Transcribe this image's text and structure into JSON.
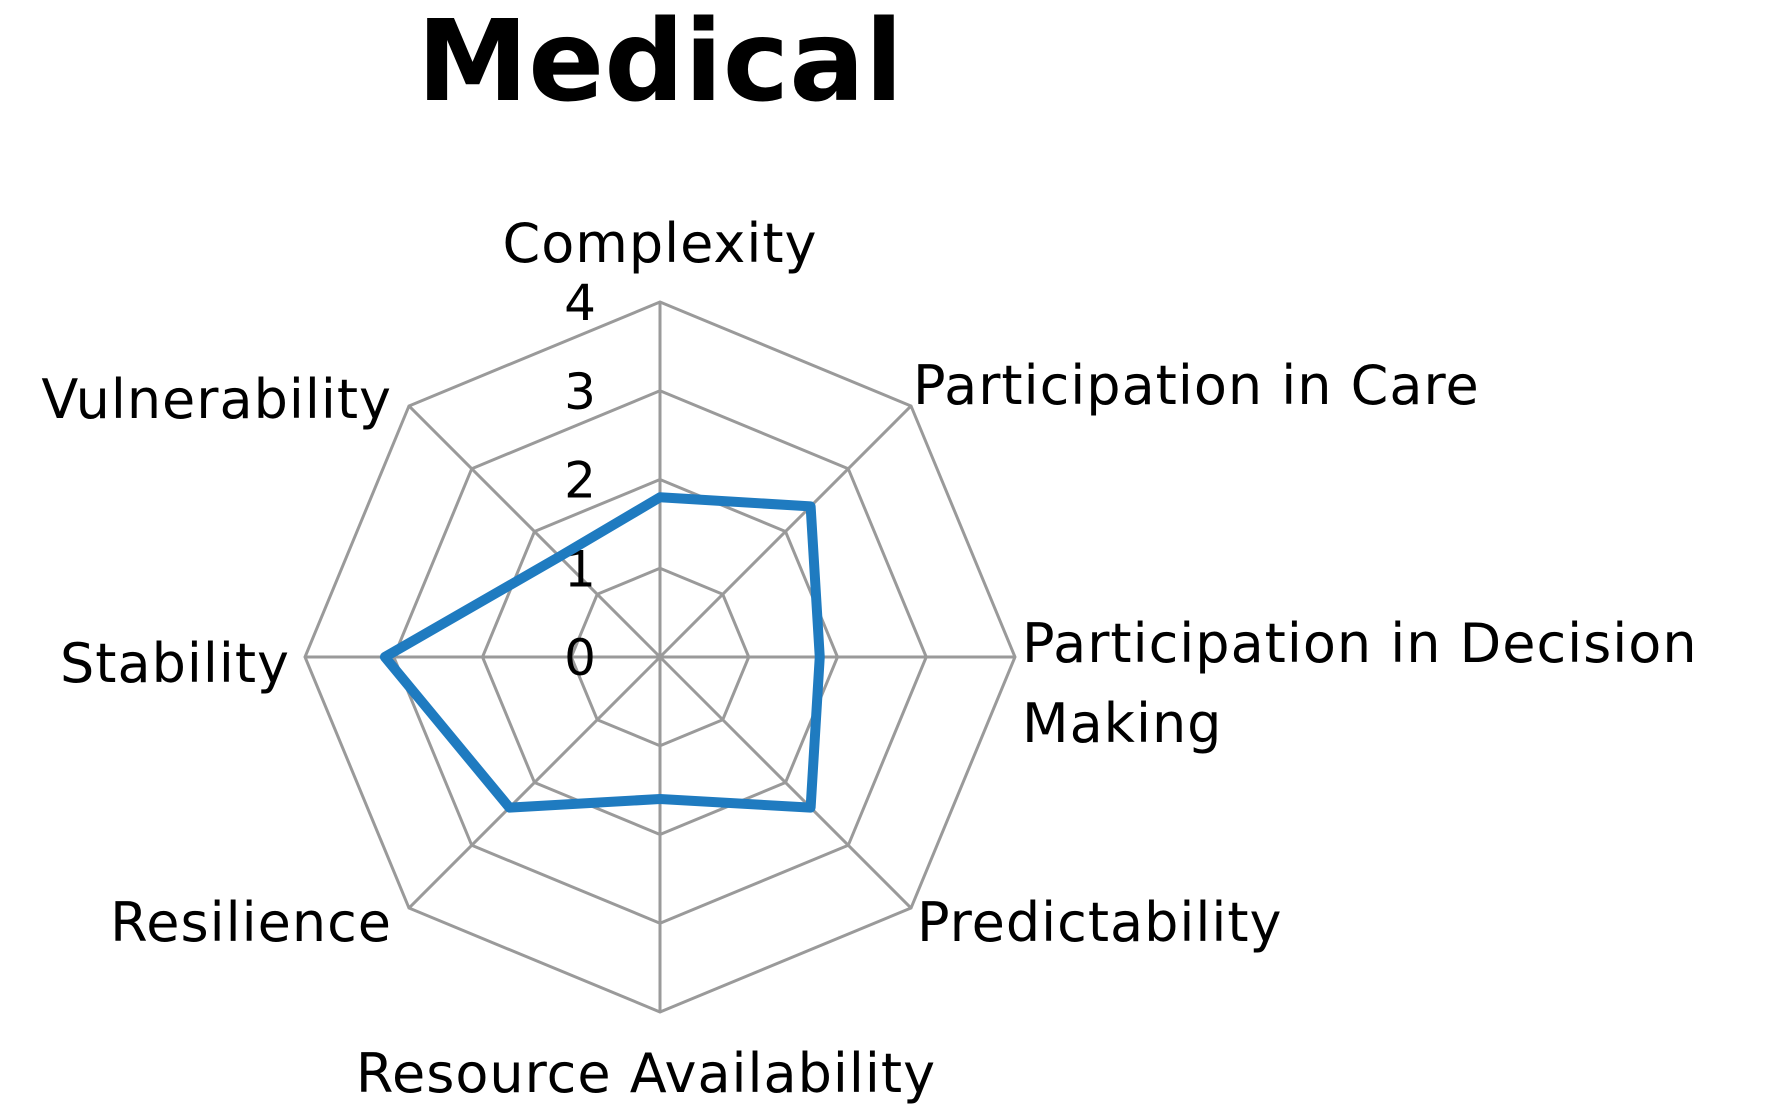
{
  "chart_data": {
    "type": "radar",
    "title": "Medical",
    "axes": [
      "Complexity",
      "Participation in Care",
      "Participation in Decision Making",
      "Predictability",
      "Resource Availability",
      "Resilience",
      "Stability",
      "Vulnerability"
    ],
    "axis_label_lines": [
      [
        "Complexity"
      ],
      [
        "Participation in Care"
      ],
      [
        "Participation in Decision",
        "Making"
      ],
      [
        "Predictability"
      ],
      [
        "Resource Availability"
      ],
      [
        "Resilience"
      ],
      [
        "Stability"
      ],
      [
        "Vulnerability"
      ]
    ],
    "ticks": [
      "0",
      "1",
      "2",
      "3",
      "4"
    ],
    "rlim": [
      0,
      4
    ],
    "series": [
      {
        "values": [
          1.8,
          2.4,
          1.8,
          2.4,
          1.6,
          2.4,
          3.1,
          1.6
        ],
        "color": "#1f7bc0"
      }
    ],
    "grid": true,
    "legend": "none"
  }
}
